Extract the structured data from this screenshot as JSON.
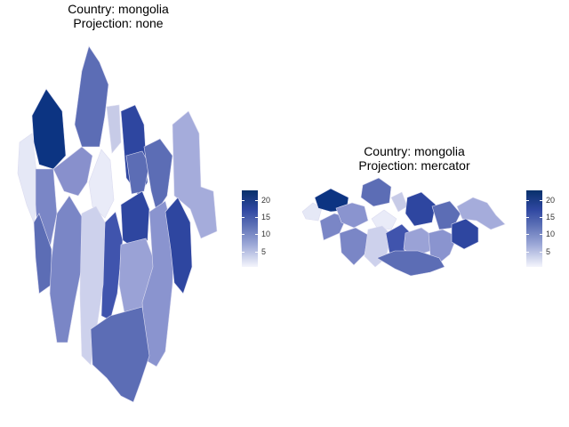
{
  "panels": [
    {
      "title_line1": "Country: mongolia",
      "title_line2": "Projection: none"
    },
    {
      "title_line1": "Country: mongolia",
      "title_line2": "Projection: mercator"
    }
  ],
  "legend": {
    "ticks": [
      "20",
      "15",
      "10",
      "5"
    ],
    "min": 0,
    "max": 22.5
  },
  "colors": {
    "high": "#08306b",
    "low": "#f4f5fc",
    "border": "#dcdcf0"
  }
}
